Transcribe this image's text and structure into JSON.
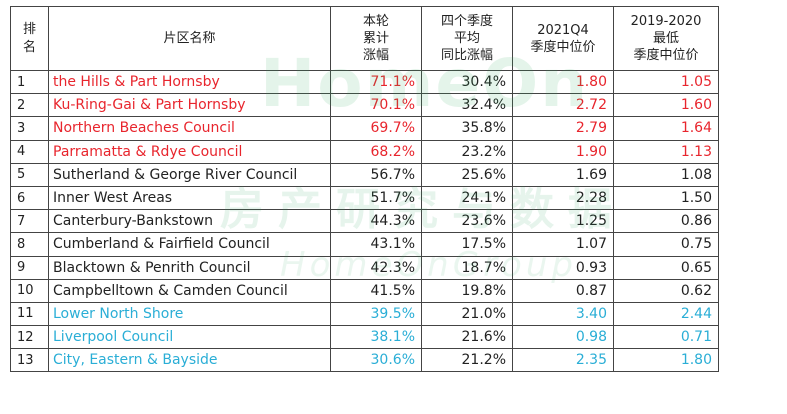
{
  "headers": {
    "rank": "排名",
    "name": "片区名称",
    "growth": [
      "本轮",
      "累计",
      "涨幅"
    ],
    "yoy": [
      "四个季度",
      "平均",
      "同比涨幅"
    ],
    "q4": [
      "2021Q4",
      "季度中位价"
    ],
    "low": [
      "2019-2020",
      "最低",
      "季度中位价"
    ]
  },
  "rows": [
    {
      "rank": "1",
      "name": "the Hills & Part Hornsby",
      "growth": "71.1%",
      "yoy": "30.4%",
      "q4": "1.80",
      "low": "1.05",
      "color": "#e8252d"
    },
    {
      "rank": "2",
      "name": "Ku-Ring-Gai & Part Hornsby",
      "growth": "70.1%",
      "yoy": "32.4%",
      "q4": "2.72",
      "low": "1.60",
      "color": "#e8252d"
    },
    {
      "rank": "3",
      "name": "Northern Beaches Council",
      "growth": "69.7%",
      "yoy": "35.8%",
      "q4": "2.79",
      "low": "1.64",
      "color": "#e8252d"
    },
    {
      "rank": "4",
      "name": "Parramatta & Rdye Council",
      "growth": "68.2%",
      "yoy": "23.2%",
      "q4": "1.90",
      "low": "1.13",
      "color": "#e8252d"
    },
    {
      "rank": "5",
      "name": "Sutherland & George River Council",
      "growth": "56.7%",
      "yoy": "25.6%",
      "q4": "1.69",
      "low": "1.08",
      "color": "#222222"
    },
    {
      "rank": "6",
      "name": "Inner West Areas",
      "growth": "51.7%",
      "yoy": "24.1%",
      "q4": "2.28",
      "low": "1.50",
      "color": "#222222"
    },
    {
      "rank": "7",
      "name": "Canterbury-Bankstown",
      "growth": "44.3%",
      "yoy": "23.6%",
      "q4": "1.25",
      "low": "0.86",
      "color": "#222222"
    },
    {
      "rank": "8",
      "name": "Cumberland & Fairfield Council",
      "growth": "43.1%",
      "yoy": "17.5%",
      "q4": "1.07",
      "low": "0.75",
      "color": "#222222"
    },
    {
      "rank": "9",
      "name": "Blacktown & Penrith Council",
      "growth": "42.3%",
      "yoy": "18.7%",
      "q4": "0.93",
      "low": "0.65",
      "color": "#222222"
    },
    {
      "rank": "10",
      "name": "Campbelltown & Camden Council",
      "growth": "41.5%",
      "yoy": "19.8%",
      "q4": "0.87",
      "low": "0.62",
      "color": "#222222"
    },
    {
      "rank": "11",
      "name": "Lower North Shore",
      "growth": "39.5%",
      "yoy": "21.0%",
      "q4": "3.40",
      "low": "2.44",
      "color": "#2aaed6"
    },
    {
      "rank": "12",
      "name": "Liverpool Council",
      "growth": "38.1%",
      "yoy": "21.6%",
      "q4": "0.98",
      "low": "0.71",
      "color": "#2aaed6"
    },
    {
      "rank": "13",
      "name": "City, Eastern & Bayside",
      "growth": "30.6%",
      "yoy": "21.2%",
      "q4": "2.35",
      "low": "1.80",
      "color": "#2aaed6"
    }
  ],
  "watermark": {
    "line1": "HomeOn",
    "line2": "房产研究与数据",
    "line3": "HomeOnGroup"
  }
}
